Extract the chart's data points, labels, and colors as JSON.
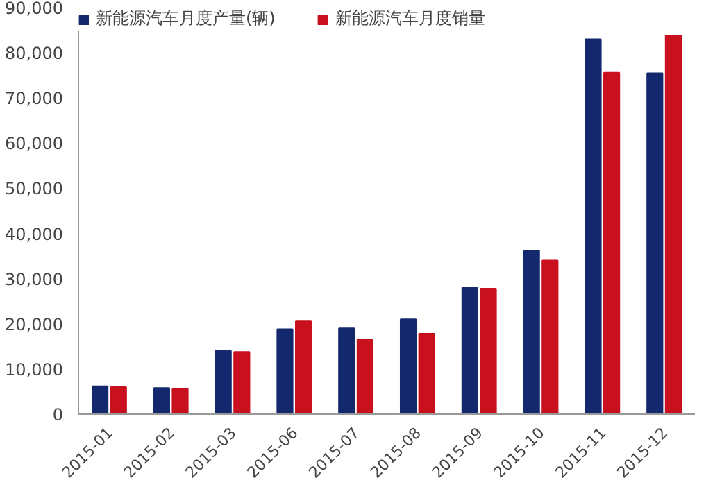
{
  "chart_data": {
    "type": "bar",
    "categories": [
      "2015-01",
      "2015-02",
      "2015-03",
      "2015-06",
      "2015-07",
      "2015-08",
      "2015-09",
      "2015-10",
      "2015-11",
      "2015-12"
    ],
    "series": [
      {
        "name": "新能源汽车月度产量(辆)",
        "color": "#14286e",
        "values": [
          6200,
          5800,
          14000,
          18800,
          19000,
          21000,
          28000,
          36200,
          83000,
          75500
        ]
      },
      {
        "name": "新能源汽车月度销量",
        "color": "#c8101e",
        "values": [
          6000,
          5600,
          13800,
          20700,
          16500,
          17800,
          27800,
          34000,
          75600,
          83800
        ]
      }
    ],
    "ylim": [
      0,
      90000
    ],
    "yticks": [
      {
        "value": 0,
        "label": "0"
      },
      {
        "value": 10000,
        "label": "10,000"
      },
      {
        "value": 20000,
        "label": "20,000"
      },
      {
        "value": 30000,
        "label": "30,000"
      },
      {
        "value": 40000,
        "label": "40,000"
      },
      {
        "value": 50000,
        "label": "50,000"
      },
      {
        "value": 60000,
        "label": "60,000"
      },
      {
        "value": 70000,
        "label": "70,000"
      },
      {
        "value": 80000,
        "label": "80,000"
      },
      {
        "value": 90000,
        "label": "90,000"
      }
    ],
    "grid": false,
    "legend": "top"
  }
}
